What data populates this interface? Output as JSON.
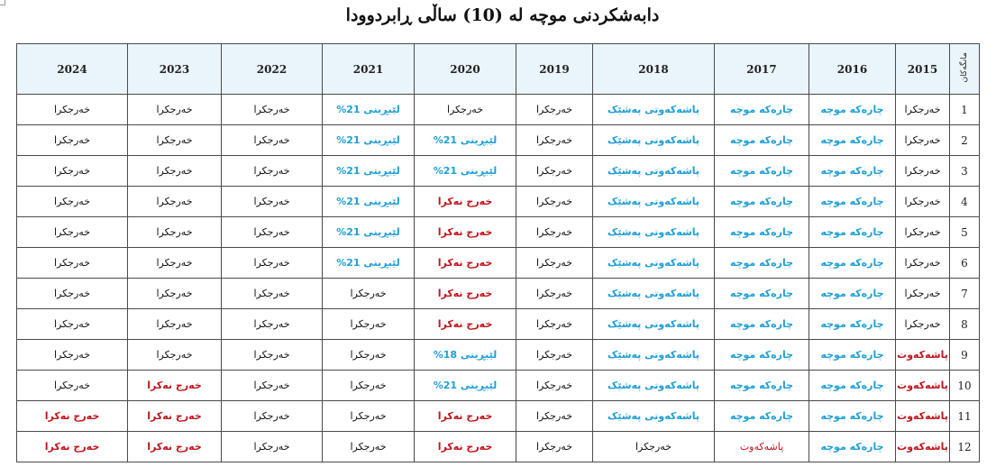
{
  "title": "دابەشکردنی موچە لە (10) ساڵی ڕابردوودا",
  "row_header_label": "مانگەکان",
  "years": [
    "2024",
    "2023",
    "2022",
    "2021",
    "2020",
    "2019",
    "2018",
    "2017",
    "2016",
    "2015"
  ],
  "colors": {
    "black": "#111111",
    "blue": "#1e9fd6",
    "red": "#c0141b",
    "header_bg": "#eaf4fb"
  },
  "rows": [
    {
      "month": "1",
      "cells": [
        {
          "text": "خەرجکرا",
          "status": "black"
        },
        {
          "text": "خەرجکرا",
          "status": "black"
        },
        {
          "text": "خەرجکرا",
          "status": "black"
        },
        {
          "text": "لێبڕینی 21%",
          "status": "blue"
        },
        {
          "text": "خەرجکرا",
          "status": "black"
        },
        {
          "text": "خەرجکرا",
          "status": "black"
        },
        {
          "text": "پاشەکەوتی  پەشێک",
          "status": "blue"
        },
        {
          "text": "چارەکە موچە",
          "status": "blue"
        },
        {
          "text": "چارەکە موچە",
          "status": "blue"
        },
        {
          "text": "خەرجکرا",
          "status": "black"
        }
      ]
    },
    {
      "month": "2",
      "cells": [
        {
          "text": "خەرجکرا",
          "status": "black"
        },
        {
          "text": "خەرجکرا",
          "status": "black"
        },
        {
          "text": "خەرجکرا",
          "status": "black"
        },
        {
          "text": "لێبڕینی 21%",
          "status": "blue"
        },
        {
          "text": "لێبڕینی 21%",
          "status": "blue"
        },
        {
          "text": "خەرجکرا",
          "status": "black"
        },
        {
          "text": "پاشەکەوتی  پەشێک",
          "status": "blue"
        },
        {
          "text": "چارەکە موچە",
          "status": "blue"
        },
        {
          "text": "چارەکە موچە",
          "status": "blue"
        },
        {
          "text": "خەرجکرا",
          "status": "black"
        }
      ]
    },
    {
      "month": "3",
      "cells": [
        {
          "text": "خەرجکرا",
          "status": "black"
        },
        {
          "text": "خەرجکرا",
          "status": "black"
        },
        {
          "text": "خەرجکرا",
          "status": "black"
        },
        {
          "text": "لێبڕینی 21%",
          "status": "blue"
        },
        {
          "text": "لێبڕینی 21%",
          "status": "blue"
        },
        {
          "text": "خەرجکرا",
          "status": "black"
        },
        {
          "text": "پاشەکەوتی  پەشێک",
          "status": "blue"
        },
        {
          "text": "چارەکە موچە",
          "status": "blue"
        },
        {
          "text": "چارەکە موچە",
          "status": "blue"
        },
        {
          "text": "خەرجکرا",
          "status": "black"
        }
      ]
    },
    {
      "month": "4",
      "cells": [
        {
          "text": "خەرجکرا",
          "status": "black"
        },
        {
          "text": "خەرجکرا",
          "status": "black"
        },
        {
          "text": "خەرجکرا",
          "status": "black"
        },
        {
          "text": "لێبڕینی 21%",
          "status": "blue"
        },
        {
          "text": "خەرج نەکرا",
          "status": "red"
        },
        {
          "text": "خەرجکرا",
          "status": "black"
        },
        {
          "text": "پاشەکەوتی  پەشێک",
          "status": "blue"
        },
        {
          "text": "چارەکە موچە",
          "status": "blue"
        },
        {
          "text": "چارەکە موچە",
          "status": "blue"
        },
        {
          "text": "خەرجکرا",
          "status": "black"
        }
      ]
    },
    {
      "month": "5",
      "cells": [
        {
          "text": "خەرجکرا",
          "status": "black"
        },
        {
          "text": "خەرجکرا",
          "status": "black"
        },
        {
          "text": "خەرجکرا",
          "status": "black"
        },
        {
          "text": "لێبڕینی 21%",
          "status": "blue"
        },
        {
          "text": "خەرج نەکرا",
          "status": "red"
        },
        {
          "text": "خەرجکرا",
          "status": "black"
        },
        {
          "text": "پاشەکەوتی  پەشێک",
          "status": "blue"
        },
        {
          "text": "چارەکە موچە",
          "status": "blue"
        },
        {
          "text": "چارەکە موچە",
          "status": "blue"
        },
        {
          "text": "خەرجکرا",
          "status": "black"
        }
      ]
    },
    {
      "month": "6",
      "cells": [
        {
          "text": "خەرجکرا",
          "status": "black"
        },
        {
          "text": "خەرجکرا",
          "status": "black"
        },
        {
          "text": "خەرجکرا",
          "status": "black"
        },
        {
          "text": "لێبڕینی 21%",
          "status": "blue"
        },
        {
          "text": "خەرج نەکرا",
          "status": "red"
        },
        {
          "text": "خەرجکرا",
          "status": "black"
        },
        {
          "text": "پاشەکەوتی  پەشێک",
          "status": "blue"
        },
        {
          "text": "چارەکە موچە",
          "status": "blue"
        },
        {
          "text": "چارەکە موچە",
          "status": "blue"
        },
        {
          "text": "خەرجکرا",
          "status": "black"
        }
      ]
    },
    {
      "month": "7",
      "cells": [
        {
          "text": "خەرجکرا",
          "status": "black"
        },
        {
          "text": "خەرجکرا",
          "status": "black"
        },
        {
          "text": "خەرجکرا",
          "status": "black"
        },
        {
          "text": "خەرجکرا",
          "status": "black"
        },
        {
          "text": "خەرج نەکرا",
          "status": "red"
        },
        {
          "text": "خەرجکرا",
          "status": "black"
        },
        {
          "text": "پاشەکەوتی  پەشێک",
          "status": "blue"
        },
        {
          "text": "چارەکە موچە",
          "status": "blue"
        },
        {
          "text": "چارەکە موچە",
          "status": "blue"
        },
        {
          "text": "خەرجکرا",
          "status": "black"
        }
      ]
    },
    {
      "month": "8",
      "cells": [
        {
          "text": "خەرجکرا",
          "status": "black"
        },
        {
          "text": "خەرجکرا",
          "status": "black"
        },
        {
          "text": "خەرجکرا",
          "status": "black"
        },
        {
          "text": "خەرجکرا",
          "status": "black"
        },
        {
          "text": "خەرج نەکرا",
          "status": "red"
        },
        {
          "text": "خەرجکرا",
          "status": "black"
        },
        {
          "text": "پاشەکەوتی  پەشێک",
          "status": "blue"
        },
        {
          "text": "چارەکە موچە",
          "status": "blue"
        },
        {
          "text": "چارەکە موچە",
          "status": "blue"
        },
        {
          "text": "خەرجکرا",
          "status": "black"
        }
      ]
    },
    {
      "month": "9",
      "cells": [
        {
          "text": "خەرجکرا",
          "status": "black"
        },
        {
          "text": "خەرجکرا",
          "status": "black"
        },
        {
          "text": "خەرجکرا",
          "status": "black"
        },
        {
          "text": "خەرجکرا",
          "status": "black"
        },
        {
          "text": "لێبڕینی 18%",
          "status": "blue"
        },
        {
          "text": "خەرجکرا",
          "status": "black"
        },
        {
          "text": "پاشەکەوتی  پەشێک",
          "status": "blue"
        },
        {
          "text": "چارەکە موچە",
          "status": "blue"
        },
        {
          "text": "چارەکە موچە",
          "status": "blue"
        },
        {
          "text": "پاشەکەوت",
          "status": "red"
        }
      ]
    },
    {
      "month": "10",
      "cells": [
        {
          "text": "خەرجکرا",
          "status": "black"
        },
        {
          "text": "خەرج نەکرا",
          "status": "red"
        },
        {
          "text": "خەرجکرا",
          "status": "black"
        },
        {
          "text": "خەرجکرا",
          "status": "black"
        },
        {
          "text": "لێبڕینی 21%",
          "status": "blue"
        },
        {
          "text": "خەرجکرا",
          "status": "black"
        },
        {
          "text": "پاشەکەوتی  پەشێک",
          "status": "blue"
        },
        {
          "text": "چارەکە موچە",
          "status": "blue"
        },
        {
          "text": "چارەکە موچە",
          "status": "blue"
        },
        {
          "text": "پاشەکەوت",
          "status": "red"
        }
      ]
    },
    {
      "month": "11",
      "cells": [
        {
          "text": "خەرج نەکرا",
          "status": "red"
        },
        {
          "text": "خەرج نەکرا",
          "status": "red"
        },
        {
          "text": "خەرجکرا",
          "status": "black"
        },
        {
          "text": "خەرجکرا",
          "status": "black"
        },
        {
          "text": "خەرج نەکرا",
          "status": "red"
        },
        {
          "text": "خەرجکرا",
          "status": "black"
        },
        {
          "text": "پاشەکەوتی  پەشێک",
          "status": "blue"
        },
        {
          "text": "چارەکە موچە",
          "status": "blue"
        },
        {
          "text": "چارەکە موچە",
          "status": "blue"
        },
        {
          "text": "پاشەکەوت",
          "status": "red"
        }
      ]
    },
    {
      "month": "12",
      "cells": [
        {
          "text": "خەرج نەکرا",
          "status": "red"
        },
        {
          "text": "خەرج نەکرا",
          "status": "red"
        },
        {
          "text": "خەرجکرا",
          "status": "black"
        },
        {
          "text": "خەرجکرا",
          "status": "black"
        },
        {
          "text": "خەرج نەکرا",
          "status": "red"
        },
        {
          "text": "خەرجکرا",
          "status": "black"
        },
        {
          "text": "خەرجکرا",
          "status": "black"
        },
        {
          "text": "پاشەکەوت",
          "status": "lightred"
        },
        {
          "text": "چارەکە موچە",
          "status": "blue"
        },
        {
          "text": "پاشەکەوت",
          "status": "red"
        }
      ]
    }
  ]
}
